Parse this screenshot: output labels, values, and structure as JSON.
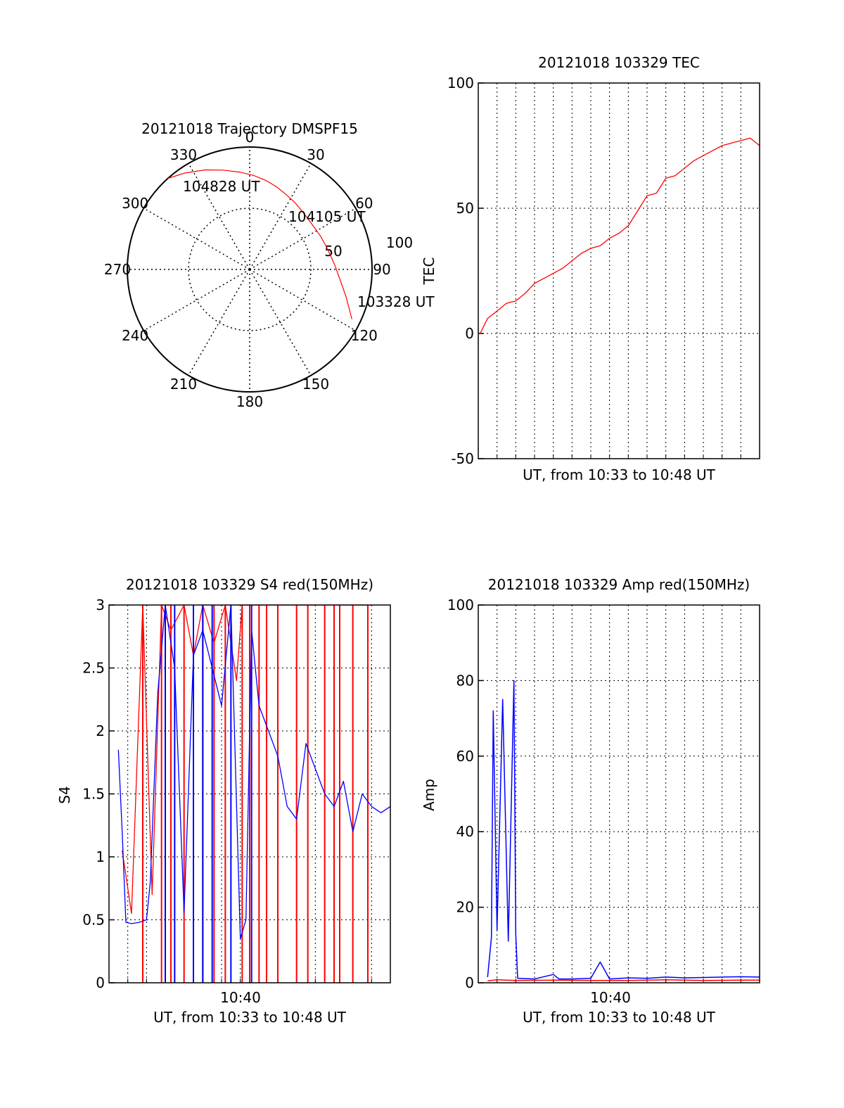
{
  "colors": {
    "red": "#ff0000",
    "blue": "#0000ff",
    "axis": "#000000",
    "grid": "#000000"
  },
  "chart_data": [
    {
      "type": "polar",
      "title": "20121018 Trajectory DMSPF15",
      "azimuth_labels": [
        "0",
        "30",
        "60",
        "90",
        "120",
        "150",
        "180",
        "210",
        "240",
        "270",
        "300",
        "330"
      ],
      "radial_labels": [
        "50",
        "100"
      ],
      "radial_max": 100,
      "trajectory": {
        "azimuth": [
          116,
          106,
          96,
          88,
          80,
          72,
          65,
          58,
          50,
          42,
          34,
          26,
          18,
          10,
          2,
          354,
          345,
          336,
          326,
          318
        ],
        "radius": [
          93,
          82,
          74,
          70,
          67,
          65,
          64,
          63,
          63,
          64,
          66,
          68,
          71,
          74,
          77,
          80,
          84,
          89,
          95,
          100
        ]
      },
      "annotations": [
        "104828 UT",
        "104105 UT",
        "103328 UT"
      ]
    },
    {
      "type": "line",
      "title": "20121018 103329 TEC",
      "xlabel": "UT, from 10:33 to 10:48 UT",
      "ylabel": "TEC",
      "xlim": [
        0,
        15
      ],
      "ylim": [
        -50,
        100
      ],
      "yticks": [
        "-50",
        "0",
        "50",
        "100"
      ],
      "series": [
        {
          "x": [
            0.1,
            0.5,
            1.0,
            1.5,
            2.0,
            2.5,
            3.0,
            3.5,
            4.0,
            4.5,
            5.0,
            5.5,
            6.0,
            6.5,
            7.0,
            7.5,
            8.0,
            8.5,
            9.0,
            9.5,
            10.0,
            10.5,
            11.0,
            11.5,
            12.0,
            12.5,
            13.0,
            13.5,
            14.0,
            14.5,
            15.0
          ],
          "y": [
            0,
            6,
            9,
            12,
            13,
            16,
            20,
            22,
            24,
            26,
            29,
            32,
            34,
            35,
            38,
            40,
            43,
            49,
            55,
            56,
            62,
            63,
            66,
            69,
            71,
            73,
            75,
            76,
            77,
            78,
            75
          ]
        }
      ]
    },
    {
      "type": "line",
      "title": "20121018 103329 S4 red(150MHz)",
      "xlabel": "UT, from 10:33 to 10:48 UT",
      "ylabel": "S4",
      "xlim": [
        0,
        15
      ],
      "ylim": [
        0,
        3
      ],
      "yticks": [
        "0",
        "0.5",
        "1",
        "1.5",
        "2",
        "2.5",
        "3"
      ],
      "xtick_label": "10:40",
      "series": [
        {
          "x": [
            0.7,
            1.2,
            1.8,
            2.3,
            2.8,
            3.3,
            4.0,
            4.5,
            5.0,
            5.6,
            6.2,
            6.8,
            7.1,
            7.5,
            8.0,
            8.4,
            9.0,
            10.0,
            10.6,
            11.5,
            12.0,
            12.3,
            13.0,
            13.8
          ],
          "y": [
            1.05,
            0.55,
            3.0,
            0.7,
            3.0,
            2.8,
            3.0,
            2.6,
            3.0,
            2.7,
            3.0,
            2.4,
            3.0,
            3.0,
            3.0,
            3.0,
            3.0,
            3.0,
            3.0,
            3.0,
            3.0,
            3.0,
            3.0,
            3.0
          ]
        },
        {
          "x": [
            0.5,
            0.7,
            0.9,
            1.2,
            1.6,
            2.0,
            2.2,
            2.6,
            3.0,
            3.5,
            4.0,
            4.5,
            5.0,
            5.5,
            6.0,
            6.5,
            7.0,
            7.3,
            7.6,
            8.0,
            8.5,
            9.0,
            9.5,
            10.0,
            10.5,
            11.0,
            11.5,
            12.0,
            12.5,
            13.0,
            13.5,
            14.0,
            14.5,
            15.0
          ],
          "y": [
            1.85,
            1.2,
            0.48,
            0.47,
            0.48,
            0.5,
            0.8,
            2.3,
            3.0,
            2.5,
            0.56,
            2.6,
            2.8,
            2.5,
            2.2,
            3.0,
            0.35,
            0.5,
            2.8,
            2.2,
            2.0,
            1.8,
            1.4,
            1.3,
            1.9,
            1.7,
            1.5,
            1.4,
            1.6,
            1.2,
            1.5,
            1.4,
            1.35,
            1.4
          ]
        }
      ]
    },
    {
      "type": "line",
      "title": "20121018 103329 Amp red(150MHz)",
      "xlabel": "UT, from 10:33 to 10:48 UT",
      "ylabel": "Amp",
      "xlim": [
        0,
        15
      ],
      "ylim": [
        0,
        100
      ],
      "yticks": [
        "0",
        "20",
        "40",
        "60",
        "80",
        "100"
      ],
      "xtick_label": "10:40",
      "series": [
        {
          "x": [
            0.5,
            1.0,
            2.0,
            4.0,
            6.0,
            8.0,
            10.0,
            12.0,
            14.0,
            15.0
          ],
          "y": [
            0.5,
            0.8,
            0.6,
            0.7,
            0.6,
            0.6,
            0.8,
            0.6,
            0.7,
            0.7
          ]
        },
        {
          "x": [
            0.5,
            0.7,
            0.8,
            1.0,
            1.3,
            1.6,
            1.9,
            2.0,
            2.1,
            3.0,
            4.0,
            4.3,
            5.0,
            6.0,
            6.5,
            7.0,
            8.0,
            9.0,
            10.0,
            11.0,
            12.0,
            13.0,
            14.0,
            15.0
          ],
          "y": [
            1.5,
            12,
            72,
            14,
            75,
            11,
            80,
            13,
            1.2,
            1.0,
            2.2,
            1.0,
            1.0,
            1.2,
            5.5,
            1.0,
            1.3,
            1.2,
            1.5,
            1.3,
            1.4,
            1.5,
            1.6,
            1.5
          ]
        }
      ]
    }
  ]
}
